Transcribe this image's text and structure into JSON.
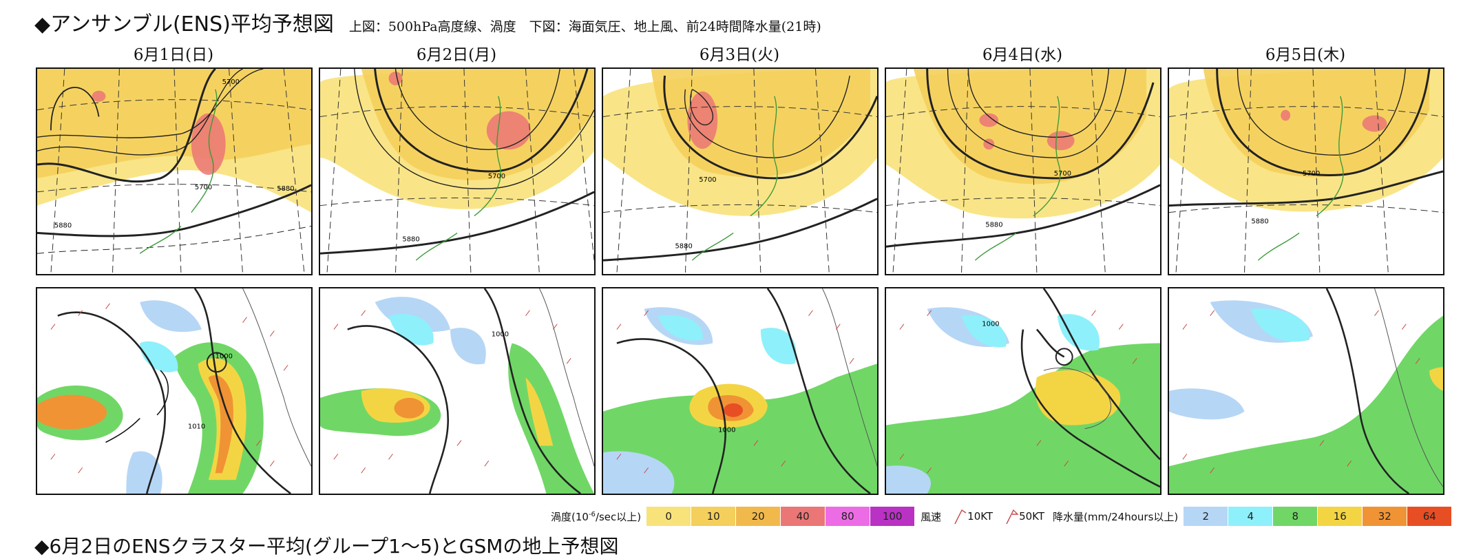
{
  "header": {
    "title": "◆アンサンブル(ENS)平均予想図",
    "subtitle": "上図：500hPa高度線、渦度　下図：海面気圧、地上風、前24時間降水量(21時)"
  },
  "dates": [
    "6月1日(日)",
    "6月2日(月)",
    "6月3日(火)",
    "6月4日(水)",
    "6月5日(木)"
  ],
  "upper_panels": {
    "labels_5700": [
      "5700",
      "5700",
      "5700",
      "5700",
      "5700"
    ],
    "labels_5880": [
      "5880",
      "5880",
      "5880",
      "5880",
      "5880"
    ],
    "extra_labels": [
      "5700",
      "5880"
    ]
  },
  "lower_panels": {
    "pressure_label": "1000",
    "extra_label": "1010"
  },
  "legend": {
    "vorticity_label": "渦度(10",
    "vorticity_exp": "-6",
    "vorticity_unit": "/sec以上)",
    "vorticity_bins": [
      {
        "value": "0",
        "color": "#f8e27a"
      },
      {
        "value": "10",
        "color": "#f4cf5c"
      },
      {
        "value": "20",
        "color": "#f1b94c"
      },
      {
        "value": "40",
        "color": "#eb7676"
      },
      {
        "value": "80",
        "color": "#ec6ce6"
      },
      {
        "value": "100",
        "color": "#b932c4"
      }
    ],
    "wind_label": "風速",
    "wind_10": "10KT",
    "wind_50": "50KT",
    "precip_label": "降水量(mm/24hours以上)",
    "precip_bins": [
      {
        "value": "2",
        "color": "#b6d6f6"
      },
      {
        "value": "4",
        "color": "#8ef0fa"
      },
      {
        "value": "8",
        "color": "#70d766"
      },
      {
        "value": "16",
        "color": "#f3d544"
      },
      {
        "value": "32",
        "color": "#f09334"
      },
      {
        "value": "64",
        "color": "#e84e23"
      }
    ]
  },
  "footer": {
    "cutline": "◆6月2日のENSクラスター平均(グループ1〜5)とGSMの地上予想図"
  }
}
